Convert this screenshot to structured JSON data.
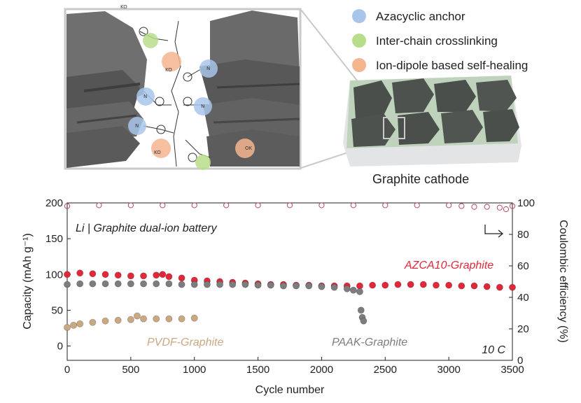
{
  "schematic": {
    "legend": [
      {
        "label": "Azacyclic anchor",
        "color": "#a9c6ea"
      },
      {
        "label": "Inter-chain crosslinking",
        "color": "#b8dd8a"
      },
      {
        "label": "Ion-dipole based self-healing",
        "color": "#f4b58f"
      }
    ],
    "caption": "Graphite cathode",
    "chem_labels": [
      "KO",
      "KO",
      "KO",
      "OK",
      "N",
      "N",
      "N",
      "N"
    ]
  },
  "chart_data": {
    "type": "scatter",
    "xlabel": "Cycle number",
    "ylabel": "Capacity (mAh g⁻¹)",
    "y2label": "Coulombic efficiency (%)",
    "xlim": [
      0,
      3500
    ],
    "ylim": [
      -20,
      200
    ],
    "y2lim": [
      0,
      100
    ],
    "xticks": [
      0,
      500,
      1000,
      1500,
      2000,
      2500,
      3000,
      3500
    ],
    "yticks": [
      0,
      50,
      100,
      150,
      200
    ],
    "y2ticks": [
      0,
      20,
      40,
      60,
      80,
      100
    ],
    "grid": false,
    "annotations": {
      "title": "Li | Graphite dual-ion battery",
      "rate": "10 C"
    },
    "series": [
      {
        "name": "AZCA10-Graphite",
        "axis": "left",
        "color": "#e0283a",
        "x": [
          0,
          100,
          200,
          300,
          400,
          500,
          600,
          700,
          750,
          800,
          900,
          1000,
          1100,
          1200,
          1300,
          1400,
          1500,
          1600,
          1700,
          1800,
          1900,
          2000,
          2100,
          2200,
          2300,
          2400,
          2500,
          2600,
          2700,
          2800,
          2900,
          3000,
          3100,
          3200,
          3300,
          3400,
          3500
        ],
        "y": [
          100,
          102,
          101,
          100,
          99,
          98,
          98,
          99,
          100,
          97,
          95,
          92,
          91,
          90,
          89,
          88,
          87,
          86,
          86,
          85,
          85,
          84,
          84,
          84,
          84,
          85,
          85,
          86,
          86,
          86,
          85,
          85,
          84,
          84,
          83,
          82,
          82
        ]
      },
      {
        "name": "PAAK-Graphite",
        "axis": "left",
        "color": "#7d7d80",
        "x": [
          0,
          100,
          200,
          300,
          400,
          500,
          600,
          700,
          800,
          900,
          1000,
          1100,
          1200,
          1300,
          1400,
          1500,
          1600,
          1700,
          1800,
          1900,
          2000,
          2100,
          2200,
          2250,
          2300,
          2310,
          2320,
          2330
        ],
        "y": [
          86,
          87,
          87,
          87,
          87,
          87,
          87,
          87,
          87,
          86,
          86,
          86,
          86,
          86,
          86,
          85,
          85,
          84,
          84,
          84,
          83,
          82,
          80,
          78,
          76,
          50,
          40,
          35
        ]
      },
      {
        "name": "PVDF-Graphite",
        "axis": "left",
        "color": "#c9a882",
        "x": [
          0,
          50,
          100,
          200,
          300,
          400,
          500,
          550,
          600,
          700,
          800,
          900,
          1000
        ],
        "y": [
          26,
          29,
          31,
          33,
          35,
          36,
          37,
          42,
          38,
          38,
          38,
          38,
          39
        ]
      },
      {
        "name": "",
        "axis": "right",
        "color": "#b04a5a",
        "x": [
          0,
          250,
          500,
          750,
          1000,
          1250,
          1500,
          1750,
          2000,
          2250,
          2500,
          2750,
          3000,
          3100,
          3200,
          3300,
          3400,
          3450,
          3500
        ],
        "y": [
          98,
          98.5,
          98.5,
          98.5,
          98.5,
          98.5,
          98.5,
          98.5,
          98.5,
          98.5,
          98.5,
          98.5,
          98.5,
          98,
          97.5,
          97.5,
          97,
          96,
          98
        ]
      }
    ]
  }
}
